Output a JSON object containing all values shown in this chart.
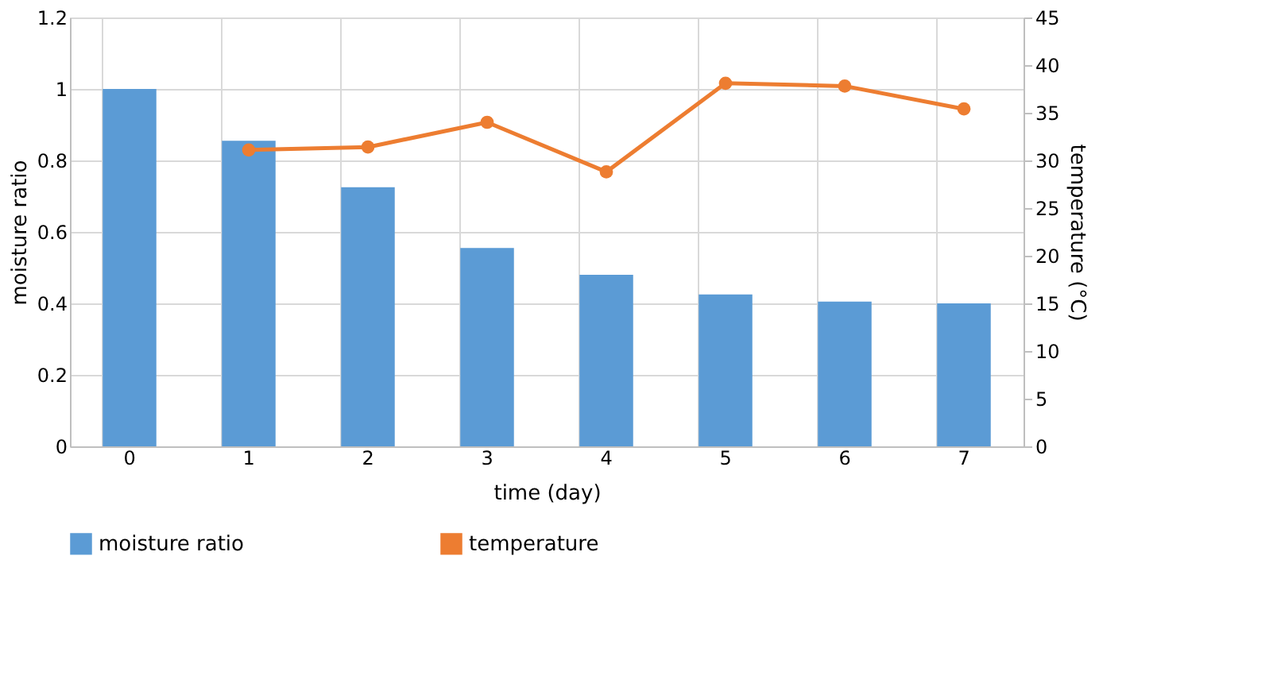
{
  "chart_data": {
    "type": "bar",
    "categories": [
      "0",
      "1",
      "2",
      "3",
      "4",
      "5",
      "6",
      "7"
    ],
    "xlabel": "time (day)",
    "ylabel": "moisture ratio",
    "y2label": "temperature (°C)",
    "series": [
      {
        "name": "moisture ratio",
        "color": "#5b9bd5",
        "values": [
          1.0,
          0.855,
          0.725,
          0.555,
          0.48,
          0.425,
          0.405,
          0.4
        ]
      },
      {
        "name": "temperature",
        "type": "line",
        "axis": "y2",
        "color": "#ed7d31",
        "marker": "circle",
        "values": [
          null,
          31.1,
          31.4,
          34.0,
          28.8,
          38.1,
          37.8,
          35.4
        ]
      }
    ],
    "ylim": [
      0,
      1.2
    ],
    "yticks": [
      0,
      0.2,
      0.4,
      0.6,
      0.8,
      1,
      1.2
    ],
    "y2lim": [
      0,
      45
    ],
    "y2ticks": [
      0,
      5,
      10,
      15,
      20,
      25,
      30,
      35,
      40,
      45
    ],
    "grid": true,
    "legend": "bottom"
  }
}
